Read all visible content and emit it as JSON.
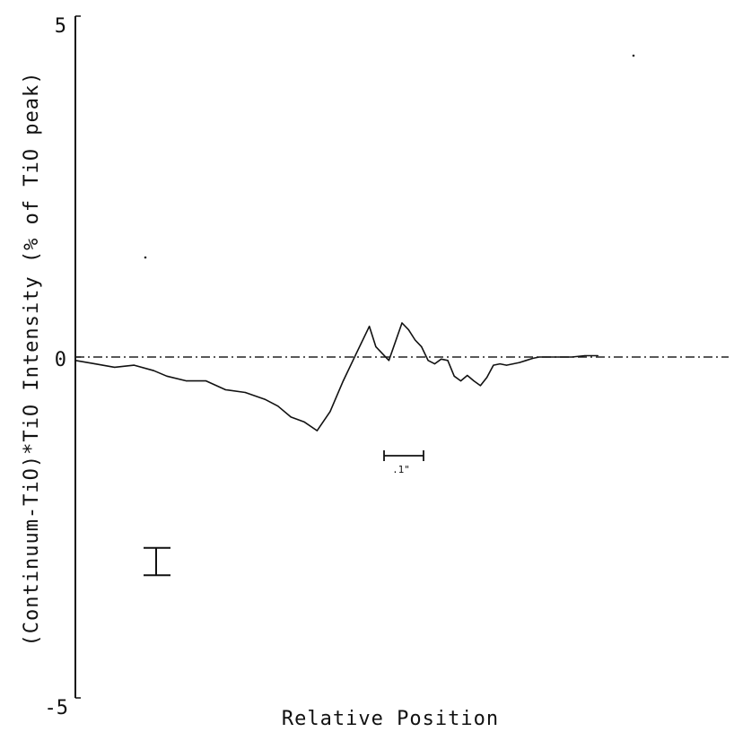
{
  "chart_data": {
    "type": "line",
    "title": "",
    "xlabel": "Relative Position",
    "ylabel": "(Continuum-TiO)*TiO Intensity (% of TiO peak)",
    "ylim": [
      -5,
      5
    ],
    "xlim": [
      0,
      100
    ],
    "yticks": [
      {
        "value": 5,
        "label": "5"
      },
      {
        "value": 0,
        "label": "0"
      },
      {
        "value": -5,
        "label": "-5"
      }
    ],
    "grid": false,
    "legend": "none",
    "series": [
      {
        "x": [
          0,
          3,
          6,
          9,
          12,
          14,
          17,
          20,
          23,
          26,
          29,
          31,
          33,
          35,
          37,
          39,
          41,
          43,
          45,
          46,
          48,
          50,
          51,
          52,
          53,
          54,
          55,
          56,
          57,
          58,
          59,
          60,
          61,
          62,
          63,
          64,
          65,
          66,
          67,
          68,
          69,
          70,
          71,
          72,
          74,
          76,
          78,
          80
        ],
        "y": [
          -0.05,
          -0.1,
          -0.15,
          -0.12,
          -0.2,
          -0.28,
          -0.35,
          -0.35,
          -0.48,
          -0.52,
          -0.62,
          -0.72,
          -0.88,
          -0.95,
          -1.08,
          -0.8,
          -0.35,
          0.05,
          0.45,
          0.15,
          -0.05,
          0.5,
          0.4,
          0.25,
          0.15,
          -0.05,
          -0.1,
          -0.03,
          -0.05,
          -0.28,
          -0.35,
          -0.27,
          -0.35,
          -0.42,
          -0.3,
          -0.12,
          -0.1,
          -0.12,
          -0.1,
          -0.08,
          -0.05,
          -0.02,
          0.0,
          0.0,
          0.0,
          0.0,
          0.02,
          0.02
        ]
      }
    ],
    "zero_line": {
      "y": 0,
      "style": "dash-dot"
    },
    "error_bar": {
      "height": 0.4
    },
    "scale_bar": {
      "label": ".1\""
    }
  }
}
